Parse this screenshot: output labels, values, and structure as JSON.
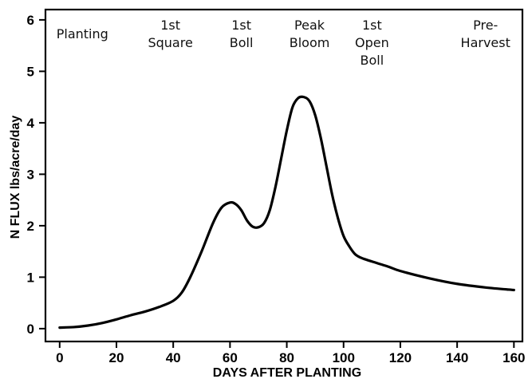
{
  "chart_data": {
    "type": "line",
    "title": "",
    "xlabel": "DAYS AFTER PLANTING",
    "ylabel": "N FLUX lbs/acre/day",
    "xlim": [
      -5,
      163
    ],
    "ylim": [
      -0.25,
      6.2
    ],
    "xticks": [
      0,
      20,
      40,
      60,
      80,
      100,
      120,
      140,
      160
    ],
    "yticks": [
      0,
      1,
      2,
      3,
      4,
      5,
      6
    ],
    "grid": false,
    "legend": "none",
    "annotations": [
      {
        "lines": [
          "Planting"
        ],
        "x": 8
      },
      {
        "lines": [
          "1st",
          "Square"
        ],
        "x": 39
      },
      {
        "lines": [
          "1st",
          "Boll"
        ],
        "x": 64
      },
      {
        "lines": [
          "Peak",
          "Bloom"
        ],
        "x": 88
      },
      {
        "lines": [
          "1st",
          "Open",
          "Boll"
        ],
        "x": 110
      },
      {
        "lines": [
          "Pre-",
          "Harvest"
        ],
        "x": 150
      }
    ],
    "series": [
      {
        "x": [
          0,
          5,
          10,
          15,
          20,
          25,
          30,
          35,
          40,
          43,
          46,
          50,
          54,
          57,
          60,
          62,
          64,
          66,
          68,
          70,
          72,
          74,
          76,
          78,
          80,
          82,
          84,
          86,
          88,
          90,
          92,
          94,
          96,
          98,
          100,
          102,
          104,
          106,
          108,
          112,
          116,
          120,
          130,
          140,
          150,
          160
        ],
        "values": [
          0.02,
          0.03,
          0.06,
          0.11,
          0.18,
          0.26,
          0.33,
          0.42,
          0.54,
          0.7,
          1.0,
          1.5,
          2.05,
          2.35,
          2.45,
          2.42,
          2.3,
          2.1,
          1.98,
          1.97,
          2.05,
          2.3,
          2.75,
          3.3,
          3.85,
          4.3,
          4.48,
          4.5,
          4.42,
          4.15,
          3.7,
          3.15,
          2.6,
          2.15,
          1.8,
          1.6,
          1.45,
          1.38,
          1.34,
          1.27,
          1.2,
          1.12,
          0.98,
          0.87,
          0.8,
          0.75
        ]
      }
    ]
  }
}
